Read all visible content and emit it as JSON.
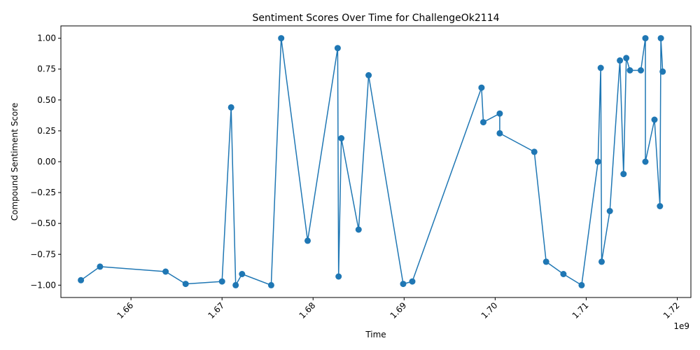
{
  "chart_data": {
    "type": "line",
    "title": "Sentiment Scores Over Time for ChallengeOk2114",
    "xlabel": "Time",
    "ylabel": "Compound Sentiment Score",
    "x_offset_label": "1e9",
    "x_ticks": [
      1.66,
      1.67,
      1.68,
      1.69,
      1.7,
      1.71,
      1.72
    ],
    "x_tick_labels": [
      "1.66",
      "1.67",
      "1.68",
      "1.69",
      "1.70",
      "1.71",
      "1.72"
    ],
    "y_ticks": [
      -1.0,
      -0.75,
      -0.5,
      -0.25,
      0.0,
      0.25,
      0.5,
      0.75,
      1.0
    ],
    "y_tick_labels": [
      "−1.00",
      "−0.75",
      "−0.50",
      "−0.25",
      "0.00",
      "0.25",
      "0.50",
      "0.75",
      "1.00"
    ],
    "xlim": [
      1.6523,
      1.7215
    ],
    "ylim": [
      -1.1,
      1.1
    ],
    "grid": false,
    "color": "#1f77b4",
    "series": [
      {
        "marker": "circle",
        "x": [
          1.6545,
          1.6566,
          1.6638,
          1.666,
          1.67,
          1.671,
          1.6715,
          1.6722,
          1.6754,
          1.6765,
          1.6794,
          1.6827,
          1.6828,
          1.6831,
          1.685,
          1.6861,
          1.6899,
          1.6909,
          1.6985,
          1.6987,
          1.7005,
          1.7005,
          1.7043,
          1.7056,
          1.7075,
          1.7095,
          1.7113,
          1.7116,
          1.7117,
          1.7126,
          1.7137,
          1.7141,
          1.7144,
          1.7148,
          1.716,
          1.7165,
          1.7165,
          1.7175,
          1.7181,
          1.7182,
          1.7184
        ],
        "y": [
          -0.96,
          -0.85,
          -0.89,
          -0.99,
          -0.97,
          0.44,
          -1.0,
          -0.91,
          -1.0,
          1.0,
          -0.64,
          0.92,
          -0.93,
          0.19,
          -0.55,
          0.7,
          -0.99,
          -0.97,
          0.6,
          0.32,
          0.39,
          0.23,
          0.08,
          -0.81,
          -0.91,
          -1.0,
          0.0,
          0.76,
          -0.81,
          -0.4,
          0.82,
          -0.1,
          0.84,
          0.74,
          0.74,
          1.0,
          0.0,
          0.34,
          -0.36,
          1.0,
          0.73
        ]
      }
    ]
  }
}
